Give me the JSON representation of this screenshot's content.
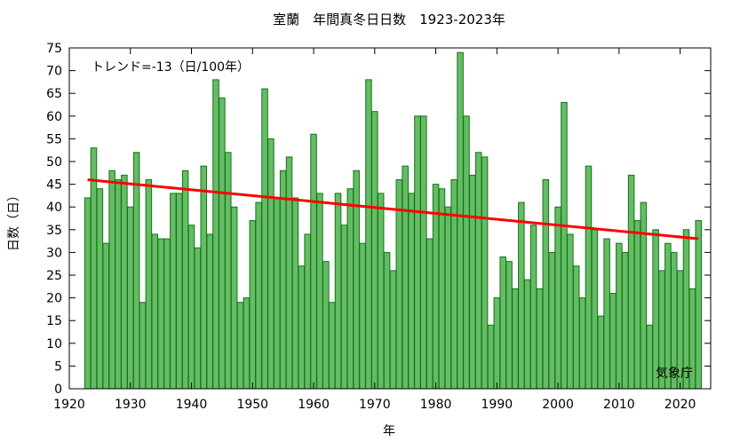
{
  "chart_data": {
    "type": "bar",
    "title": "室蘭　年間真冬日日数　1923-2023年",
    "xlabel": "年",
    "ylabel": "日数（日）",
    "xlim": [
      1920,
      2025
    ],
    "ylim": [
      0,
      75
    ],
    "x_ticks": [
      1920,
      1930,
      1940,
      1950,
      1960,
      1970,
      1980,
      1990,
      2000,
      2010,
      2020
    ],
    "y_ticks": [
      0,
      5,
      10,
      15,
      20,
      25,
      30,
      35,
      40,
      45,
      50,
      55,
      60,
      65,
      70,
      75
    ],
    "grid": false,
    "x": [
      1923,
      1924,
      1925,
      1926,
      1927,
      1928,
      1929,
      1930,
      1931,
      1932,
      1933,
      1934,
      1935,
      1936,
      1937,
      1938,
      1939,
      1940,
      1941,
      1942,
      1943,
      1944,
      1945,
      1946,
      1947,
      1948,
      1949,
      1950,
      1951,
      1952,
      1953,
      1954,
      1955,
      1956,
      1957,
      1958,
      1959,
      1960,
      1961,
      1962,
      1963,
      1964,
      1965,
      1966,
      1967,
      1968,
      1969,
      1970,
      1971,
      1972,
      1973,
      1974,
      1975,
      1976,
      1977,
      1978,
      1979,
      1980,
      1981,
      1982,
      1983,
      1984,
      1985,
      1986,
      1987,
      1988,
      1989,
      1990,
      1991,
      1992,
      1993,
      1994,
      1995,
      1996,
      1997,
      1998,
      1999,
      2000,
      2001,
      2002,
      2003,
      2004,
      2005,
      2006,
      2007,
      2008,
      2009,
      2010,
      2011,
      2012,
      2013,
      2014,
      2015,
      2016,
      2017,
      2018,
      2019,
      2020,
      2021,
      2022,
      2023
    ],
    "values": [
      42,
      53,
      44,
      32,
      48,
      46,
      47,
      40,
      52,
      19,
      46,
      34,
      33,
      33,
      43,
      43,
      48,
      36,
      31,
      49,
      34,
      68,
      64,
      52,
      40,
      19,
      20,
      37,
      41,
      66,
      55,
      42,
      48,
      51,
      42,
      27,
      34,
      56,
      43,
      28,
      19,
      43,
      36,
      44,
      48,
      32,
      68,
      61,
      43,
      30,
      26,
      46,
      49,
      43,
      60,
      60,
      33,
      45,
      44,
      40,
      46,
      74,
      60,
      47,
      52,
      51,
      14,
      20,
      29,
      28,
      22,
      41,
      24,
      36,
      22,
      46,
      30,
      40,
      63,
      34,
      27,
      20,
      49,
      35,
      16,
      33,
      21,
      32,
      30,
      47,
      37,
      41,
      14,
      35,
      26,
      32,
      30,
      26,
      35,
      22,
      37
    ],
    "bar_color": "#66bb66",
    "bar_edge_color": "#117711",
    "trend": {
      "label": "トレンド=-13（日/100年）",
      "start": [
        1923,
        46
      ],
      "end": [
        2023,
        33
      ],
      "color": "#ff0000"
    },
    "source_label": "気象庁"
  }
}
